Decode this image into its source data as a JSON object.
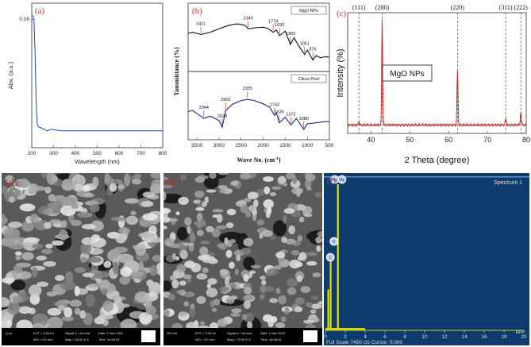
{
  "panel_labels": [
    "(a)",
    "(b)",
    "(c)",
    "(d)",
    "(e)",
    "(f)"
  ],
  "chart_data": [
    {
      "type": "line",
      "panel": "(a)",
      "xlabel": "Wavelength (nm)",
      "ylabel": "Abs. (a.u.)",
      "xlim": [
        200,
        800
      ],
      "ylim": [
        0,
        0.18
      ],
      "xticks": [
        200,
        300,
        400,
        500,
        600,
        700,
        800
      ],
      "yticks": [
        0.16
      ],
      "series": [
        {
          "color": "#2244cc",
          "x": [
            205,
            210,
            215,
            220,
            225,
            230,
            240,
            250,
            270,
            290,
            310,
            340,
            380,
            450,
            550,
            650,
            750,
            800
          ],
          "y": [
            0.165,
            0.16,
            0.12,
            0.06,
            0.03,
            0.026,
            0.025,
            0.024,
            0.021,
            0.023,
            0.022,
            0.021,
            0.021,
            0.021,
            0.021,
            0.021,
            0.021,
            0.021
          ]
        }
      ]
    },
    {
      "type": "line",
      "panel": "(b)",
      "xlabel": "Wave No. (cm",
      "xlabel_sup": "-1",
      "xlabel_close": ")",
      "ylabel": "Tansmittance (%)",
      "xlim": [
        3700,
        500
      ],
      "xticks": [
        3500,
        3000,
        2500,
        2000,
        1500,
        1000,
        500
      ],
      "series": [
        {
          "name": "MgO NPs",
          "color": "#111111",
          "x": [
            3700,
            3600,
            3411,
            3200,
            3000,
            2800,
            2600,
            2500,
            2400,
            2340,
            2200,
            2000,
            1900,
            1774,
            1700,
            1630,
            1500,
            1383,
            1300,
            1200,
            1061,
            1000,
            876,
            800,
            700,
            600,
            500
          ],
          "y": [
            60,
            62,
            58,
            62,
            68,
            74,
            77,
            76,
            74,
            68,
            70,
            71,
            69,
            62,
            66,
            56,
            64,
            40,
            52,
            38,
            22,
            30,
            12,
            20,
            16,
            18,
            17
          ],
          "annotations": [
            {
              "x": 3411,
              "label": "3411"
            },
            {
              "x": 2340,
              "label": "2340"
            },
            {
              "x": 1774,
              "label": "1774"
            },
            {
              "x": 1630,
              "label": "1630"
            },
            {
              "x": 1383,
              "label": "1383"
            },
            {
              "x": 1061,
              "label": "1061"
            },
            {
              "x": 876,
              "label": "876"
            }
          ]
        },
        {
          "name": "Citrus Peel",
          "color": "#1a237e",
          "x": [
            3700,
            3600,
            3344,
            3200,
            3000,
            2928,
            2850,
            2700,
            2500,
            2355,
            2200,
            2000,
            1850,
            1743,
            1700,
            1636,
            1500,
            1372,
            1250,
            1080,
            1000,
            800,
            600,
            500
          ],
          "y": [
            42,
            44,
            30,
            34,
            26,
            14,
            44,
            55,
            62,
            64,
            62,
            56,
            50,
            35,
            40,
            22,
            32,
            18,
            30,
            10,
            20,
            22,
            24,
            24
          ],
          "annotations": [
            {
              "x": 3344,
              "label": "3344"
            },
            {
              "x": 2928,
              "label": "2928"
            },
            {
              "x": 2850,
              "label": "2850"
            },
            {
              "x": 2355,
              "label": "2355"
            },
            {
              "x": 1743,
              "label": "1743"
            },
            {
              "x": 1636,
              "label": "1636"
            },
            {
              "x": 1372,
              "label": "1372"
            },
            {
              "x": 1080,
              "label": "1080"
            }
          ]
        }
      ]
    },
    {
      "type": "line",
      "panel": "(c)",
      "xlabel": "2 Theta (degree)",
      "ylabel": "Intensity (%)",
      "xlim": [
        34,
        80
      ],
      "xticks": [
        40,
        50,
        60,
        70,
        80
      ],
      "legend": "MgO NPs",
      "peaks": [
        {
          "x": 36.9,
          "label": "(111)",
          "height": 3
        },
        {
          "x": 42.9,
          "label": "(200)",
          "height": 100
        },
        {
          "x": 62.3,
          "label": "(220)",
          "height": 52
        },
        {
          "x": 74.7,
          "label": "(311)",
          "height": 6
        },
        {
          "x": 78.6,
          "label": "(222)",
          "height": 12
        }
      ],
      "series": [
        {
          "color": "#c62828",
          "baseline": 8
        }
      ]
    },
    {
      "type": "bar",
      "panel": "(f)",
      "title": "Spectrum 1",
      "xlabel": "keV",
      "xlim": [
        0,
        20
      ],
      "xticks": [
        0,
        2,
        4,
        6,
        8,
        10,
        12,
        14,
        16,
        18,
        20
      ],
      "footer": "Full Scale 7450 cts Cursor: 0.000",
      "peaks": [
        {
          "x": 0.28,
          "label": "C",
          "height": 0.28
        },
        {
          "x": 0.52,
          "label": "O",
          "height": 0.5
        },
        {
          "x": 1.25,
          "label": "Mg",
          "height": 1.0
        },
        {
          "x": 1.1,
          "label": "Mg",
          "height": 0.0
        }
      ]
    }
  ],
  "sem": [
    {
      "panel": "(d)",
      "scale": "1 µm",
      "eht": "EHT = 5.00 kV",
      "wd": "WD = 5.0 mm",
      "signal": "Signal A = InLens",
      "mag": "Mag = 30.00 K X",
      "date": "Date :1 Nov 2022",
      "time": "Time :14:06:24"
    },
    {
      "panel": "(e)",
      "scale": "200 nm",
      "eht": "EHT = 5.00 kV",
      "wd": "WD = 5.0 mm",
      "signal": "Signal A = InLens",
      "mag": "Mag = 75.00 K X",
      "date": "Date :1 Nov 2022",
      "time": "Time :14:06:24"
    }
  ]
}
